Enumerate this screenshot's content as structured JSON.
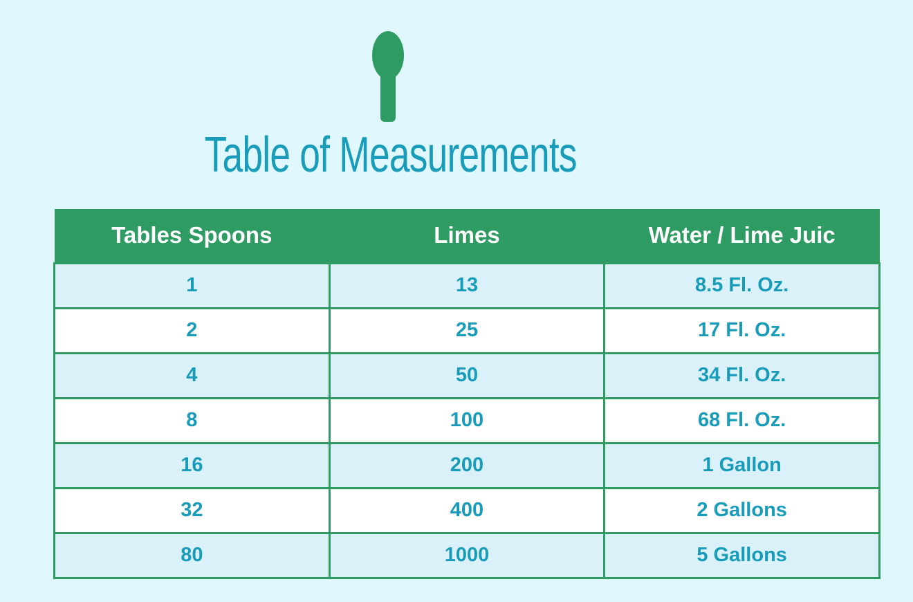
{
  "chart_data": {
    "type": "table",
    "title": "Table of Measurements",
    "columns": [
      "Tables Spoons",
      "Limes",
      "Water / Lime Juic"
    ],
    "rows": [
      [
        "1",
        "13",
        "8.5 Fl. Oz."
      ],
      [
        "2",
        "25",
        "17 Fl. Oz."
      ],
      [
        "4",
        "50",
        "34 Fl. Oz."
      ],
      [
        "8",
        "100",
        "68 Fl. Oz."
      ],
      [
        "16",
        "200",
        "1 Gallon"
      ],
      [
        "32",
        "400",
        "2 Gallons"
      ],
      [
        "80",
        "1000",
        "5 Gallons"
      ]
    ],
    "layout": {
      "header_position": "top",
      "grid": true,
      "row_striping": "odd-rows-light-blue"
    }
  },
  "icons": {
    "spoon": "spoon-icon"
  },
  "colors": {
    "page-bg": "#E0F7FD",
    "green": "#2E9B62",
    "teal": "#189CBA",
    "alt-row": "#DBF1F9",
    "white-row": "#FFFFFF",
    "header-text": "#FFFFFF"
  }
}
